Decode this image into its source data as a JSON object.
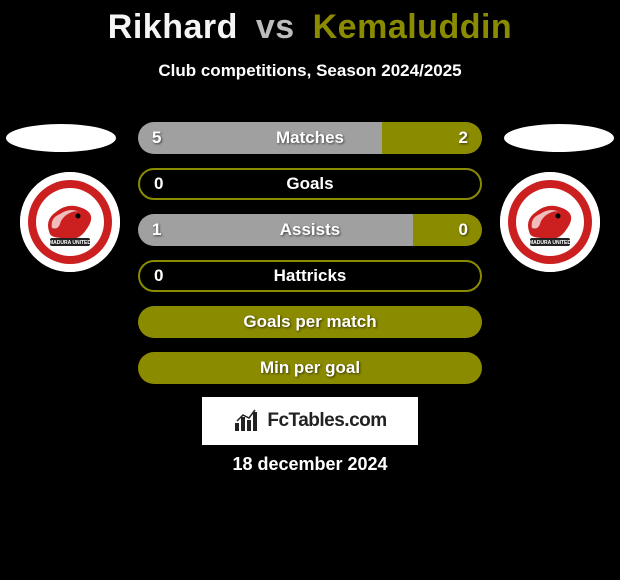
{
  "header": {
    "player1": "Rikhard",
    "vs": "vs",
    "player2": "Kemaluddin",
    "subtitle": "Club competitions, Season 2024/2025"
  },
  "colors": {
    "title_p1": "#f5f5f5",
    "title_p2": "#8b8b00",
    "bar_left": "#a0a0a0",
    "bar_right": "#8b8b00",
    "bar_outline": "#8b8b00",
    "background": "#000000",
    "logo_bg": "#ffffff"
  },
  "stats": [
    {
      "label": "Matches",
      "left_val": "5",
      "right_val": "2",
      "left_pct": 71,
      "right_pct": 29,
      "style": "split"
    },
    {
      "label": "Goals",
      "left_val": "0",
      "right_val": "",
      "left_pct": 0,
      "right_pct": 0,
      "style": "outline"
    },
    {
      "label": "Assists",
      "left_val": "1",
      "right_val": "0",
      "left_pct": 80,
      "right_pct": 20,
      "style": "split"
    },
    {
      "label": "Hattricks",
      "left_val": "0",
      "right_val": "",
      "left_pct": 0,
      "right_pct": 0,
      "style": "outline"
    },
    {
      "label": "Goals per match",
      "left_val": "",
      "right_val": "",
      "left_pct": 0,
      "right_pct": 0,
      "style": "filled"
    },
    {
      "label": "Min per goal",
      "left_val": "",
      "right_val": "",
      "left_pct": 0,
      "right_pct": 0,
      "style": "filled"
    }
  ],
  "logo": {
    "text": "FcTables.com"
  },
  "date": "18 december 2024",
  "badge": {
    "team": "MADURA UNITED"
  }
}
